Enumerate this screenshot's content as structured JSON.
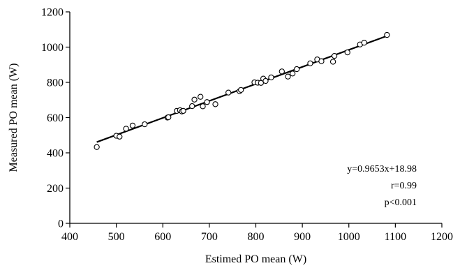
{
  "chart_data": {
    "type": "scatter",
    "xlabel": "Estimed PO mean (W)",
    "ylabel": "Measured PO mean (W)",
    "xlim": [
      400,
      1200
    ],
    "ylim": [
      0,
      1200
    ],
    "xticks": [
      400,
      500,
      600,
      700,
      800,
      900,
      1000,
      1100,
      1200
    ],
    "yticks": [
      0,
      200,
      400,
      600,
      800,
      1000,
      1200
    ],
    "grid": false,
    "points": [
      [
        458,
        433
      ],
      [
        500,
        497
      ],
      [
        507,
        492
      ],
      [
        521,
        537
      ],
      [
        535,
        555
      ],
      [
        561,
        562
      ],
      [
        610,
        600
      ],
      [
        612,
        602
      ],
      [
        630,
        638
      ],
      [
        637,
        642
      ],
      [
        641,
        635
      ],
      [
        644,
        638
      ],
      [
        663,
        665
      ],
      [
        668,
        702
      ],
      [
        681,
        718
      ],
      [
        686,
        664
      ],
      [
        695,
        688
      ],
      [
        713,
        676
      ],
      [
        741,
        742
      ],
      [
        765,
        750
      ],
      [
        768,
        757
      ],
      [
        797,
        800
      ],
      [
        804,
        798
      ],
      [
        811,
        797
      ],
      [
        816,
        821
      ],
      [
        821,
        808
      ],
      [
        833,
        828
      ],
      [
        856,
        862
      ],
      [
        869,
        833
      ],
      [
        879,
        850
      ],
      [
        888,
        875
      ],
      [
        917,
        908
      ],
      [
        932,
        930
      ],
      [
        941,
        920
      ],
      [
        966,
        917
      ],
      [
        969,
        950
      ],
      [
        997,
        970
      ],
      [
        1024,
        1015
      ],
      [
        1033,
        1025
      ],
      [
        1082,
        1069
      ]
    ],
    "fit_line": {
      "slope": 0.9653,
      "intercept": 18.98,
      "x_range": [
        458,
        1082
      ]
    },
    "annotations": [
      "y=0.9653x+18.98",
      "r=0.99",
      "p<0.001"
    ]
  }
}
